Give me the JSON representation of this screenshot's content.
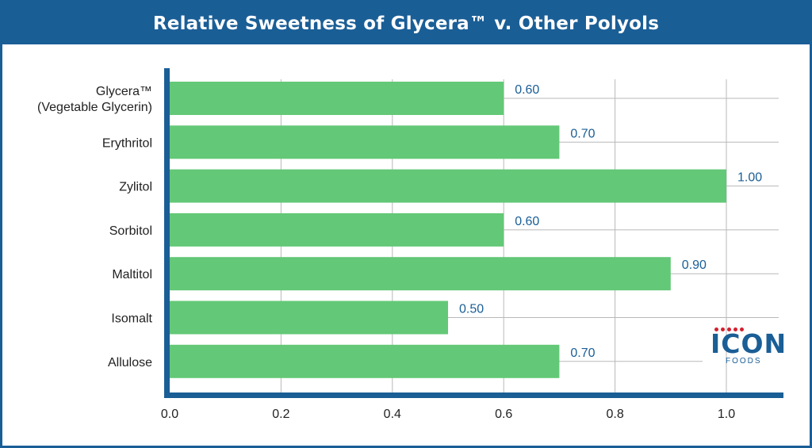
{
  "header": {
    "title": "Relative Sweetness of Glycera™ v. Other Polyols"
  },
  "chart_data": {
    "type": "bar",
    "orientation": "horizontal",
    "title": "Relative Sweetness of Glycera™ v. Other Polyols",
    "xlabel": "",
    "ylabel": "",
    "xlim": [
      0,
      1.1
    ],
    "x_ticks": [
      "0.0",
      "0.2",
      "0.4",
      "0.6",
      "0.8",
      "1.0"
    ],
    "x_tick_values": [
      0,
      0.2,
      0.4,
      0.6,
      0.8,
      1.0
    ],
    "grid": true,
    "categories": [
      [
        "Glycera™",
        "(Vegetable Glycerin)"
      ],
      [
        "Erythritol"
      ],
      [
        "Zylitol"
      ],
      [
        "Sorbitol"
      ],
      [
        "Maltitol"
      ],
      [
        "Isomalt"
      ],
      [
        "Allulose"
      ]
    ],
    "values": [
      0.6,
      0.7,
      1.0,
      0.6,
      0.9,
      0.5,
      0.7
    ],
    "value_labels": [
      "0.60",
      "0.70",
      "1.00",
      "0.60",
      "0.90",
      "0.50",
      "0.70"
    ],
    "bar_color": "#63c877",
    "axis_color": "#1a5e96",
    "value_label_color": "#1a5e96"
  },
  "logo": {
    "name": "ICON",
    "subtitle": "FOODS",
    "dot_color": "#d22030",
    "color": "#1a5e96"
  }
}
